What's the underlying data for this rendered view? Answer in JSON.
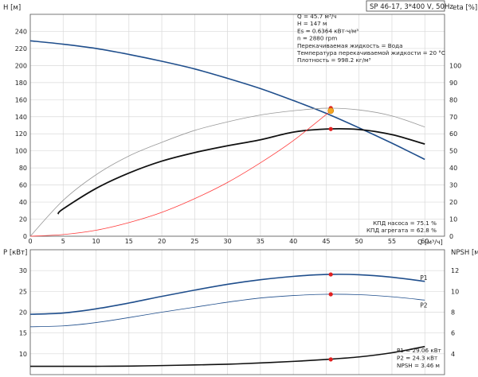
{
  "header": {
    "model": "SP 46-17, 3*400 V, 50Hz"
  },
  "info_lines": [
    "Q = 45.7 м³/ч",
    "H = 147 м",
    "Es = 0.6364 кВт·ч/м³",
    "n = 2880 rpm",
    "Перекачиваемая жидкость = Вода",
    "Температура перекачиваемой жидкости = 20 °C",
    "Плотность = 998.2 кг/м³"
  ],
  "efficiency_lines": [
    "КПД насоса = 75.1 %",
    "КПД агрегата = 62.8 %"
  ],
  "power_lines": [
    "P1 = 29.06 кВт",
    "P2 = 24.3 кВт",
    "NPSH = 3.46 м"
  ],
  "colors": {
    "head": "#1f4e8c",
    "power": "#1f4e8c",
    "pump_efficiency": "#999999",
    "total_efficiency": "#111111",
    "system_curve": "#ff3b3b",
    "npsh": "#111111",
    "duty_point": "#e02020",
    "duty_fill": "#f5a623",
    "grid": "#d9d9d9"
  },
  "chart_data": [
    {
      "type": "line",
      "name": "upper",
      "xlabel": "Q [м³/ч]",
      "ylabel_left": "H [м]",
      "ylabel_right": "eta [%]",
      "xlim": [
        0,
        63
      ],
      "ylim": [
        0,
        260
      ],
      "y2lim": [
        0,
        130
      ],
      "xticks": [
        0,
        5,
        10,
        15,
        20,
        25,
        30,
        35,
        40,
        45,
        50,
        55,
        60
      ],
      "yticks": [
        0,
        20,
        40,
        60,
        80,
        100,
        120,
        140,
        160,
        180,
        200,
        220,
        240
      ],
      "y2ticks": [
        0,
        10,
        20,
        30,
        40,
        50,
        60,
        70,
        80,
        90,
        100
      ],
      "grid": true,
      "series": [
        {
          "key": "head",
          "axis": "left",
          "x": [
            0,
            5,
            10,
            15,
            20,
            25,
            30,
            35,
            40,
            45,
            50,
            55,
            60
          ],
          "y": [
            229,
            225,
            220,
            213,
            205,
            196,
            185,
            173,
            159,
            144,
            127,
            109,
            90
          ]
        },
        {
          "key": "pump_efficiency",
          "axis": "right",
          "x": [
            0,
            5,
            10,
            15,
            20,
            25,
            30,
            35,
            40,
            45,
            50,
            55,
            60
          ],
          "y": [
            0,
            21,
            36,
            47,
            55,
            62,
            67,
            71,
            73.5,
            75,
            74,
            70.5,
            64
          ]
        },
        {
          "key": "total_efficiency",
          "axis": "right",
          "x": [
            4.2,
            5,
            10,
            15,
            20,
            25,
            30,
            35,
            40,
            45,
            50,
            55,
            60
          ],
          "y": [
            13,
            16,
            28,
            37,
            44,
            49,
            53,
            56.5,
            61,
            62.8,
            62.5,
            59.5,
            54
          ]
        },
        {
          "key": "system_curve",
          "axis": "left",
          "x": [
            0,
            5,
            10,
            15,
            20,
            25,
            30,
            35,
            40,
            45.7
          ],
          "y": [
            0,
            2,
            7,
            16,
            28,
            44,
            63,
            86,
            112,
            147
          ]
        }
      ],
      "duty_point": {
        "x": 45.7,
        "head": 147,
        "eta_pump": 75.1,
        "eta_total": 62.8
      }
    },
    {
      "type": "line",
      "name": "lower",
      "xlabel": "Q [м³/ч]",
      "ylabel_left": "P [кВт]",
      "ylabel_right": "NPSH [м]",
      "xlim": [
        0,
        63
      ],
      "ylim": [
        5,
        35
      ],
      "y2lim": [
        2,
        14
      ],
      "yticks": [
        10,
        15,
        20,
        25,
        30
      ],
      "y2ticks": [
        4,
        6,
        8,
        10,
        12
      ],
      "grid": true,
      "series": [
        {
          "key": "p1",
          "name": "P1",
          "axis": "left",
          "x": [
            0,
            5,
            10,
            15,
            20,
            25,
            30,
            35,
            40,
            45,
            50,
            55,
            60
          ],
          "y": [
            19.5,
            19.8,
            20.8,
            22.2,
            23.8,
            25.3,
            26.7,
            27.8,
            28.6,
            29.06,
            29.0,
            28.4,
            27.4
          ]
        },
        {
          "key": "p2",
          "name": "P2",
          "axis": "left",
          "x": [
            0,
            5,
            10,
            15,
            20,
            25,
            30,
            35,
            40,
            45,
            50,
            55,
            60
          ],
          "y": [
            16.5,
            16.7,
            17.5,
            18.7,
            20.0,
            21.2,
            22.4,
            23.4,
            24.0,
            24.3,
            24.2,
            23.7,
            22.9
          ]
        },
        {
          "key": "npsh",
          "axis": "right",
          "x": [
            0,
            5,
            10,
            15,
            20,
            25,
            30,
            35,
            40,
            45,
            50,
            55,
            60
          ],
          "y": [
            2.8,
            2.8,
            2.8,
            2.82,
            2.87,
            2.93,
            3.0,
            3.12,
            3.27,
            3.46,
            3.7,
            4.1,
            4.7
          ]
        }
      ],
      "duty_point": {
        "x": 45.7,
        "p1": 29.06,
        "p2": 24.3,
        "npsh": 3.46
      }
    }
  ]
}
